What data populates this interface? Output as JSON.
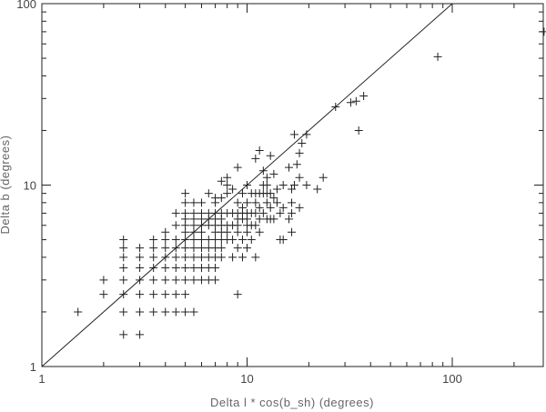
{
  "chart_data": {
    "type": "scatter",
    "title": "",
    "xlabel": "Delta l * cos(b_sh) (degrees)",
    "ylabel": "Delta b (degrees)",
    "xscale": "log",
    "yscale": "log",
    "xlim": [
      1,
      300
    ],
    "ylim": [
      1,
      100
    ],
    "grid": false,
    "legend": "none",
    "marker": "plus",
    "marker_color": "#222222",
    "line_color": "#222222",
    "x_ticks": [
      {
        "value": 1,
        "label": "1"
      },
      {
        "value": 10,
        "label": "10"
      },
      {
        "value": 100,
        "label": "100"
      }
    ],
    "y_ticks": [
      {
        "value": 1,
        "label": "1"
      },
      {
        "value": 10,
        "label": "10"
      },
      {
        "value": 100,
        "label": "100"
      }
    ],
    "reference_line": {
      "x": [
        1,
        100
      ],
      "y": [
        1,
        100
      ]
    },
    "points": [
      {
        "x": 1.5,
        "y": 2.0
      },
      {
        "x": 2.0,
        "y": 2.5
      },
      {
        "x": 2.0,
        "y": 3.0
      },
      {
        "x": 2.5,
        "y": 1.5
      },
      {
        "x": 2.5,
        "y": 2.0
      },
      {
        "x": 2.5,
        "y": 2.5
      },
      {
        "x": 2.5,
        "y": 3.0
      },
      {
        "x": 2.5,
        "y": 3.5
      },
      {
        "x": 2.5,
        "y": 4.0
      },
      {
        "x": 2.5,
        "y": 4.5
      },
      {
        "x": 2.5,
        "y": 5.0
      },
      {
        "x": 3.0,
        "y": 1.5
      },
      {
        "x": 3.0,
        "y": 2.0
      },
      {
        "x": 3.0,
        "y": 2.5
      },
      {
        "x": 3.0,
        "y": 3.0
      },
      {
        "x": 3.0,
        "y": 3.5
      },
      {
        "x": 3.0,
        "y": 4.0
      },
      {
        "x": 3.0,
        "y": 4.5
      },
      {
        "x": 3.5,
        "y": 2.0
      },
      {
        "x": 3.5,
        "y": 2.5
      },
      {
        "x": 3.5,
        "y": 3.0
      },
      {
        "x": 3.5,
        "y": 3.5
      },
      {
        "x": 3.5,
        "y": 4.0
      },
      {
        "x": 3.5,
        "y": 4.5
      },
      {
        "x": 3.5,
        "y": 5.0
      },
      {
        "x": 4.0,
        "y": 2.0
      },
      {
        "x": 4.0,
        "y": 2.5
      },
      {
        "x": 4.0,
        "y": 3.0
      },
      {
        "x": 4.0,
        "y": 3.5
      },
      {
        "x": 4.0,
        "y": 4.0
      },
      {
        "x": 4.0,
        "y": 4.5
      },
      {
        "x": 4.0,
        "y": 5.0
      },
      {
        "x": 4.0,
        "y": 5.5
      },
      {
        "x": 4.5,
        "y": 2.0
      },
      {
        "x": 4.5,
        "y": 2.5
      },
      {
        "x": 4.5,
        "y": 3.0
      },
      {
        "x": 4.5,
        "y": 3.5
      },
      {
        "x": 4.5,
        "y": 4.0
      },
      {
        "x": 4.5,
        "y": 4.5
      },
      {
        "x": 4.5,
        "y": 5.0
      },
      {
        "x": 4.5,
        "y": 6.0
      },
      {
        "x": 4.5,
        "y": 7.0
      },
      {
        "x": 5.0,
        "y": 2.0
      },
      {
        "x": 5.0,
        "y": 2.5
      },
      {
        "x": 5.0,
        "y": 3.0
      },
      {
        "x": 5.0,
        "y": 3.5
      },
      {
        "x": 5.0,
        "y": 4.0
      },
      {
        "x": 5.0,
        "y": 4.5
      },
      {
        "x": 5.0,
        "y": 5.0
      },
      {
        "x": 5.0,
        "y": 5.5
      },
      {
        "x": 5.0,
        "y": 6.0
      },
      {
        "x": 5.0,
        "y": 6.5
      },
      {
        "x": 5.0,
        "y": 7.0
      },
      {
        "x": 5.0,
        "y": 8.0
      },
      {
        "x": 5.0,
        "y": 9.0
      },
      {
        "x": 5.5,
        "y": 2.0
      },
      {
        "x": 5.5,
        "y": 3.0
      },
      {
        "x": 5.5,
        "y": 3.5
      },
      {
        "x": 5.5,
        "y": 4.0
      },
      {
        "x": 5.5,
        "y": 4.5
      },
      {
        "x": 5.5,
        "y": 5.0
      },
      {
        "x": 5.5,
        "y": 5.5
      },
      {
        "x": 5.5,
        "y": 6.0
      },
      {
        "x": 5.5,
        "y": 6.5
      },
      {
        "x": 5.5,
        "y": 7.0
      },
      {
        "x": 5.5,
        "y": 8.0
      },
      {
        "x": 6.0,
        "y": 3.0
      },
      {
        "x": 6.0,
        "y": 3.5
      },
      {
        "x": 6.0,
        "y": 4.0
      },
      {
        "x": 6.0,
        "y": 4.5
      },
      {
        "x": 6.0,
        "y": 5.0
      },
      {
        "x": 6.0,
        "y": 5.5
      },
      {
        "x": 6.0,
        "y": 6.0
      },
      {
        "x": 6.0,
        "y": 6.5
      },
      {
        "x": 6.0,
        "y": 7.0
      },
      {
        "x": 6.0,
        "y": 8.0
      },
      {
        "x": 6.5,
        "y": 3.0
      },
      {
        "x": 6.5,
        "y": 3.5
      },
      {
        "x": 6.5,
        "y": 4.0
      },
      {
        "x": 6.5,
        "y": 4.5
      },
      {
        "x": 6.5,
        "y": 5.0
      },
      {
        "x": 6.5,
        "y": 6.0
      },
      {
        "x": 6.5,
        "y": 6.5
      },
      {
        "x": 6.5,
        "y": 7.0
      },
      {
        "x": 6.5,
        "y": 9.0
      },
      {
        "x": 7.0,
        "y": 3.0
      },
      {
        "x": 7.0,
        "y": 3.5
      },
      {
        "x": 7.0,
        "y": 4.0
      },
      {
        "x": 7.0,
        "y": 4.5
      },
      {
        "x": 7.0,
        "y": 5.0
      },
      {
        "x": 7.0,
        "y": 5.5
      },
      {
        "x": 7.0,
        "y": 6.0
      },
      {
        "x": 7.0,
        "y": 6.5
      },
      {
        "x": 7.0,
        "y": 7.0
      },
      {
        "x": 7.0,
        "y": 8.0
      },
      {
        "x": 7.0,
        "y": 8.5
      },
      {
        "x": 7.5,
        "y": 4.0
      },
      {
        "x": 7.5,
        "y": 4.5
      },
      {
        "x": 7.5,
        "y": 5.0
      },
      {
        "x": 7.5,
        "y": 5.5
      },
      {
        "x": 7.5,
        "y": 6.0
      },
      {
        "x": 7.5,
        "y": 6.5
      },
      {
        "x": 7.5,
        "y": 7.0
      },
      {
        "x": 7.5,
        "y": 8.5
      },
      {
        "x": 7.5,
        "y": 10.5
      },
      {
        "x": 8.0,
        "y": 5.0
      },
      {
        "x": 8.0,
        "y": 5.5
      },
      {
        "x": 8.0,
        "y": 6.0
      },
      {
        "x": 8.0,
        "y": 7.0
      },
      {
        "x": 8.0,
        "y": 9.0
      },
      {
        "x": 8.0,
        "y": 10.0
      },
      {
        "x": 8.0,
        "y": 11.0
      },
      {
        "x": 8.5,
        "y": 4.0
      },
      {
        "x": 8.5,
        "y": 5.0
      },
      {
        "x": 8.5,
        "y": 6.0
      },
      {
        "x": 8.5,
        "y": 7.0
      },
      {
        "x": 8.5,
        "y": 9.5
      },
      {
        "x": 9.0,
        "y": 2.5
      },
      {
        "x": 9.0,
        "y": 4.5
      },
      {
        "x": 9.0,
        "y": 5.5
      },
      {
        "x": 9.0,
        "y": 6.0
      },
      {
        "x": 9.0,
        "y": 6.5
      },
      {
        "x": 9.0,
        "y": 7.0
      },
      {
        "x": 9.0,
        "y": 8.0
      },
      {
        "x": 9.0,
        "y": 12.5
      },
      {
        "x": 9.5,
        "y": 4.0
      },
      {
        "x": 9.5,
        "y": 5.0
      },
      {
        "x": 9.5,
        "y": 6.5
      },
      {
        "x": 9.5,
        "y": 7.0
      },
      {
        "x": 9.5,
        "y": 7.5
      },
      {
        "x": 9.5,
        "y": 9.0
      },
      {
        "x": 10.0,
        "y": 4.5
      },
      {
        "x": 10.0,
        "y": 5.5
      },
      {
        "x": 10.0,
        "y": 6.0
      },
      {
        "x": 10.0,
        "y": 6.5
      },
      {
        "x": 10.0,
        "y": 7.0
      },
      {
        "x": 10.0,
        "y": 8.0
      },
      {
        "x": 10.0,
        "y": 10.0
      },
      {
        "x": 10.5,
        "y": 5.0
      },
      {
        "x": 10.5,
        "y": 6.0
      },
      {
        "x": 10.5,
        "y": 7.0
      },
      {
        "x": 10.5,
        "y": 9.0
      },
      {
        "x": 11.0,
        "y": 4.0
      },
      {
        "x": 11.0,
        "y": 6.0
      },
      {
        "x": 11.0,
        "y": 7.0
      },
      {
        "x": 11.0,
        "y": 8.0
      },
      {
        "x": 11.0,
        "y": 9.0
      },
      {
        "x": 11.0,
        "y": 14.0
      },
      {
        "x": 11.5,
        "y": 5.5
      },
      {
        "x": 11.5,
        "y": 6.5
      },
      {
        "x": 11.5,
        "y": 7.5
      },
      {
        "x": 11.5,
        "y": 9.0
      },
      {
        "x": 11.5,
        "y": 15.5
      },
      {
        "x": 12.0,
        "y": 7.0
      },
      {
        "x": 12.0,
        "y": 9.0
      },
      {
        "x": 12.0,
        "y": 10.0
      },
      {
        "x": 12.0,
        "y": 12.0
      },
      {
        "x": 12.5,
        "y": 6.5
      },
      {
        "x": 12.5,
        "y": 8.0
      },
      {
        "x": 12.5,
        "y": 9.0
      },
      {
        "x": 12.5,
        "y": 10.0
      },
      {
        "x": 12.5,
        "y": 11.0
      },
      {
        "x": 13.0,
        "y": 6.5
      },
      {
        "x": 13.0,
        "y": 7.5
      },
      {
        "x": 13.0,
        "y": 9.0
      },
      {
        "x": 13.0,
        "y": 14.5
      },
      {
        "x": 13.5,
        "y": 6.5
      },
      {
        "x": 13.5,
        "y": 8.5
      },
      {
        "x": 13.5,
        "y": 11.5
      },
      {
        "x": 14.0,
        "y": 8.0
      },
      {
        "x": 14.0,
        "y": 9.5
      },
      {
        "x": 14.5,
        "y": 5.0
      },
      {
        "x": 14.5,
        "y": 7.0
      },
      {
        "x": 15.0,
        "y": 5.0
      },
      {
        "x": 15.0,
        "y": 7.5
      },
      {
        "x": 15.0,
        "y": 10.0
      },
      {
        "x": 16.0,
        "y": 6.5
      },
      {
        "x": 16.0,
        "y": 12.5
      },
      {
        "x": 16.5,
        "y": 5.5
      },
      {
        "x": 16.5,
        "y": 7.0
      },
      {
        "x": 16.5,
        "y": 8.0
      },
      {
        "x": 16.5,
        "y": 9.5
      },
      {
        "x": 17.0,
        "y": 10.0
      },
      {
        "x": 17.0,
        "y": 19.0
      },
      {
        "x": 17.5,
        "y": 13.0
      },
      {
        "x": 18.0,
        "y": 7.5
      },
      {
        "x": 18.0,
        "y": 11.0
      },
      {
        "x": 18.0,
        "y": 15.0
      },
      {
        "x": 18.5,
        "y": 17.0
      },
      {
        "x": 19.5,
        "y": 10.0
      },
      {
        "x": 19.5,
        "y": 19.0
      },
      {
        "x": 22.0,
        "y": 9.5
      },
      {
        "x": 23.5,
        "y": 11.0
      },
      {
        "x": 27.0,
        "y": 27.0
      },
      {
        "x": 32.0,
        "y": 28.5
      },
      {
        "x": 34.0,
        "y": 29.0
      },
      {
        "x": 35.0,
        "y": 20.0
      },
      {
        "x": 37.0,
        "y": 31.0
      },
      {
        "x": 85.0,
        "y": 51.0
      },
      {
        "x": 280.0,
        "y": 70.0
      }
    ]
  }
}
